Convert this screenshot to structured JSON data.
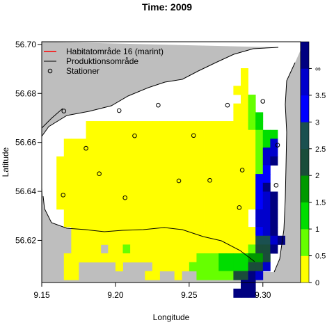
{
  "chart_data": {
    "type": "heatmap",
    "title": "Time: 2009",
    "xlabel": "Longitude",
    "ylabel": "Latitude",
    "xlim": [
      9.15,
      9.3256
    ],
    "ylim": [
      56.6028,
      56.7011
    ],
    "x_ticks": [
      9.15,
      9.2,
      9.25,
      9.3
    ],
    "x_tick_labels": [
      "9.15",
      "9.20",
      "9.25",
      "9.30"
    ],
    "y_ticks": [
      56.62,
      56.64,
      56.66,
      56.68,
      56.7
    ],
    "y_tick_labels": [
      "56.62",
      "56.64",
      "56.66",
      "56.68",
      "56.70"
    ],
    "grid": false,
    "legend": {
      "position": "top-left",
      "entries": [
        {
          "label": "Habitatområde 16 (marint)",
          "symbol": "line",
          "color": "#ff0000"
        },
        {
          "label": "Produktionsområde",
          "symbol": "line",
          "color": "#000000"
        },
        {
          "label": "Stationer",
          "symbol": "open-circle",
          "color": "#000000"
        }
      ]
    },
    "colorbar": {
      "breaks": [
        0,
        0.5,
        1,
        1.5,
        2,
        2.5,
        3,
        3.5,
        4
      ],
      "colors": [
        "#ffff00",
        "#66ff00",
        "#00dd00",
        "#009900",
        "#1a4d3a",
        "#1a5050",
        "#0000ff",
        "#0000cc",
        "#000080"
      ],
      "tick_labels": [
        "0",
        "0.5",
        "1",
        "1.5",
        "2",
        "2.5",
        "3",
        "3.5",
        "∞"
      ]
    },
    "grid_x0": 9.15,
    "grid_y0": 56.6028,
    "grid_dx": 0.005,
    "grid_dy": 0.0036,
    "grid_rows": [
      "..................................",
      "..................................",
      "..................................",
      "...........................0......",
      "...........................0......",
      "..........................00......",
      "...........................01.....",
      "..........................001.....",
      "..........................0012....",
      "......000000000000000000000012....",
      "......00000000000000000000000122..",
      "...00000000000000000000000000127..",
      "...00000000000000000000000000177..",
      "..000000000000000000000000000178..",
      "..00000000000000000000000000016...",
      "..00000000000000000000000000066...",
      "..00000000000000000000000000068...",
      "..000000000000000000000000000678..",
      "..000000000000000000000000000678..",
      "...0000000000000000000000000.778..",
      "...0000000000000000000000000.778..",
      "....0000000000000000000000000678..",
      "....00000000000000000000000005578.",
      "....0000.00100000000000000001448..",
      "...0000000000000000001112222334...",
      "...00.....0....0000011112222447...",
      "...00.........00..0..111114487....",
      "...........................88.....",
      "..........................888....."
    ],
    "stations": [
      [
        9.165,
        56.6728
      ],
      [
        9.2025,
        56.673
      ],
      [
        9.229,
        56.6752
      ],
      [
        9.276,
        56.6752
      ],
      [
        9.3,
        56.6768
      ],
      [
        9.213,
        56.6627
      ],
      [
        9.253,
        56.6628
      ],
      [
        9.18,
        56.6576
      ],
      [
        9.31,
        56.6589
      ],
      [
        9.189,
        56.6472
      ],
      [
        9.286,
        56.6487
      ],
      [
        9.243,
        56.6443
      ],
      [
        9.264,
        56.6445
      ],
      [
        9.309,
        56.6425
      ],
      [
        9.1645,
        56.6385
      ],
      [
        9.2065,
        56.6374
      ],
      [
        9.284,
        56.6334
      ]
    ]
  }
}
